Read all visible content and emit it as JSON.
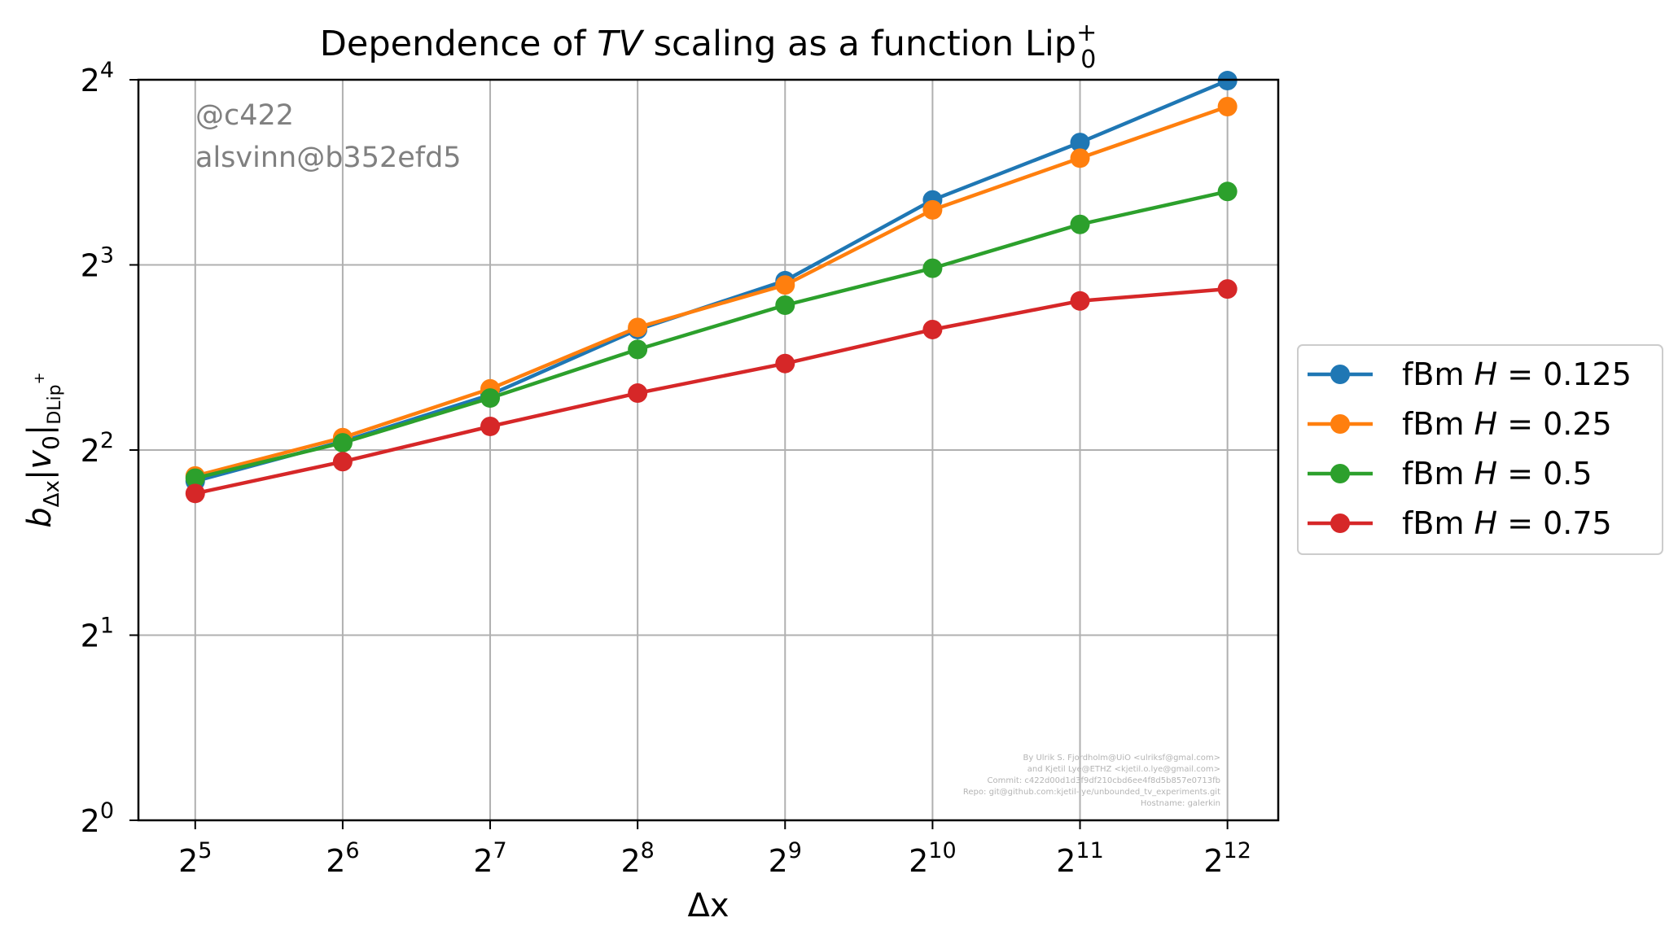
{
  "chart_data": {
    "type": "line",
    "title": {
      "pre": "Dependence of ",
      "italic": "TV",
      "mid": " scaling as a function Lip",
      "sub": "0",
      "sup": "+"
    },
    "xlabel": "Δx",
    "ylabel": {
      "b": "b",
      "b_sub": "Δx",
      "bar_open": "|",
      "v": "v",
      "v_sub": "0",
      "bar_close": "|",
      "norm_sub": "DLip",
      "norm_sup": "+"
    },
    "x_scale": "log2",
    "y_scale": "log2",
    "xlim": [
      24.5,
      5200
    ],
    "ylim": [
      1,
      16
    ],
    "x": [
      32,
      64,
      128,
      256,
      512,
      1024,
      2048,
      4096
    ],
    "x_ticks": [
      {
        "value": 32,
        "base": "2",
        "exp": "5"
      },
      {
        "value": 64,
        "base": "2",
        "exp": "6"
      },
      {
        "value": 128,
        "base": "2",
        "exp": "7"
      },
      {
        "value": 256,
        "base": "2",
        "exp": "8"
      },
      {
        "value": 512,
        "base": "2",
        "exp": "9"
      },
      {
        "value": 1024,
        "base": "2",
        "exp": "10"
      },
      {
        "value": 2048,
        "base": "2",
        "exp": "11"
      },
      {
        "value": 4096,
        "base": "2",
        "exp": "12"
      }
    ],
    "y_ticks": [
      {
        "value": 1,
        "base": "2",
        "exp": "0"
      },
      {
        "value": 2,
        "base": "2",
        "exp": "1"
      },
      {
        "value": 4,
        "base": "2",
        "exp": "2"
      },
      {
        "value": 8,
        "base": "2",
        "exp": "3"
      },
      {
        "value": 16,
        "base": "2",
        "exp": "4"
      }
    ],
    "grid": true,
    "legend_position": "outside right",
    "series": [
      {
        "name": "fBm ",
        "param": "H",
        "eq": " = 0.125",
        "color": "#1f77b4",
        "values": [
          3.56,
          4.13,
          4.92,
          6.28,
          7.54,
          10.2,
          12.65,
          15.95
        ]
      },
      {
        "name": "fBm ",
        "param": "H",
        "eq": " = 0.25",
        "color": "#ff7f0e",
        "values": [
          3.63,
          4.19,
          5.03,
          6.33,
          7.42,
          9.83,
          11.93,
          14.47
        ]
      },
      {
        "name": "fBm ",
        "param": "H",
        "eq": " = 0.5",
        "color": "#2ca02c",
        "values": [
          3.6,
          4.11,
          4.86,
          5.83,
          6.88,
          7.9,
          9.31,
          10.53
        ]
      },
      {
        "name": "fBm ",
        "param": "H",
        "eq": " = 0.75",
        "color": "#d62728",
        "values": [
          3.4,
          3.83,
          4.37,
          4.95,
          5.53,
          6.28,
          6.99,
          7.31
        ]
      }
    ],
    "annotations": {
      "watermark": [
        "@c422",
        "alsvinn@b352efd5"
      ],
      "credits": [
        "By Ulrik S. Fjordholm@UiO <ulriksf@gmal.com>",
        "and Kjetil Lye@ETHZ <kjetil.o.lye@gmail.com>",
        "Commit: c422d00d1d3f9df210cbd6ee4f8d5b857e0713fb",
        "Repo: git@github.com:kjetil-lye/unbounded_tv_experiments.git",
        "Hostname: galerkin"
      ]
    }
  }
}
